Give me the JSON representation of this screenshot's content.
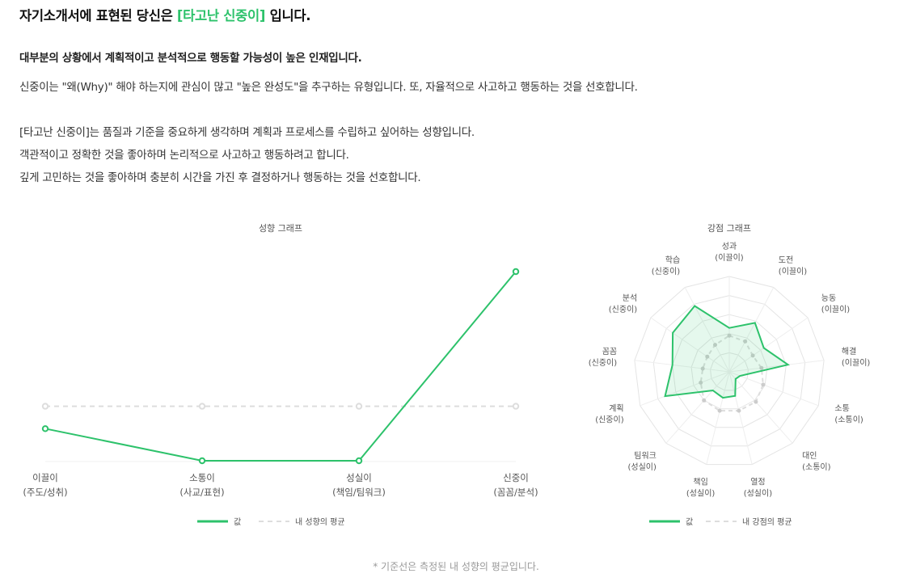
{
  "headline": {
    "prefix": "자기소개서에 표현된 당신은 ",
    "type_name": "[타고난 신중이]",
    "suffix": " 입니다."
  },
  "lead": "대부분의 상황에서 계획적이고 분석적으로 행동할 가능성이 높은 인재입니다.",
  "paragraphs": [
    "신중이는 \"왜(Why)\" 해야 하는지에 관심이 많고 \"높은 완성도\"을 추구하는 유형입니다. 또, 자율적으로 사고하고 행동하는 것을 선호합니다.",
    "[타고난 신중이]는 품질과 기준을 중요하게 생각하며 계획과 프로세스를 수립하고 싶어하는 성향입니다.",
    "객관적이고 정확한 것을 좋아하며 논리적으로 사고하고 행동하려고 합니다.",
    "깊게 고민하는 것을 좋아하며 충분히 시간을 가진 후 결정하거나 행동하는 것을 선호합니다."
  ],
  "chart_data": [
    {
      "type": "line",
      "title": "성향 그래프",
      "categories": [
        [
          "이끌이",
          "(주도/성취)"
        ],
        [
          "소통이",
          "(사교/표현)"
        ],
        [
          "성실이",
          "(책임/팀워크)"
        ],
        [
          "신중이",
          "(꼼꼼/분석)"
        ]
      ],
      "series": [
        {
          "name": "값",
          "values": [
            0.2,
            0,
            0,
            1.18
          ],
          "color": "#2dc26b",
          "style": "solid"
        },
        {
          "name": "내 성향의 평균",
          "values": [
            0.34,
            0.34,
            0.34,
            0.34
          ],
          "color": "#dddddd",
          "style": "dashed"
        }
      ],
      "ylim": [
        0,
        1.2
      ],
      "grid": false,
      "legend": "bottom-center"
    },
    {
      "type": "radar",
      "title": "강점 그래프",
      "axes": [
        [
          "성과",
          "(이끌이)"
        ],
        [
          "도전",
          "(이끌이)"
        ],
        [
          "능동",
          "(이끌이)"
        ],
        [
          "해결",
          "(이끌이)"
        ],
        [
          "소통",
          "(소통이)"
        ],
        [
          "대인",
          "(소통이)"
        ],
        [
          "열정",
          "(성실이)"
        ],
        [
          "책임",
          "(성실이)"
        ],
        [
          "팀워크",
          "(성실이)"
        ],
        [
          "계획",
          "(신중이)"
        ],
        [
          "꼼꼼",
          "(신중이)"
        ],
        [
          "분석",
          "(신중이)"
        ],
        [
          "학습",
          "(신중이)"
        ]
      ],
      "rlim": [
        0,
        5
      ],
      "rings": 5,
      "series": [
        {
          "name": "값",
          "values": [
            2.3,
            2.9,
            2.2,
            3.1,
            0.6,
            0.5,
            1.3,
            1.4,
            1.3,
            3.6,
            3.0,
            3.6,
            3.9
          ],
          "color": "#2dc26b",
          "style": "solid"
        },
        {
          "name": "내 강점의 평균",
          "values": [
            1.9,
            1.8,
            1.5,
            1.7,
            1.9,
            2.1,
            2.1,
            2.1,
            2.0,
            1.6,
            1.4,
            1.4,
            1.6
          ],
          "color": "#dddddd",
          "style": "dashed"
        }
      ],
      "legend": "bottom-center"
    }
  ],
  "footnote": "* 기준선은 측정된 내 성향의 평균입니다."
}
